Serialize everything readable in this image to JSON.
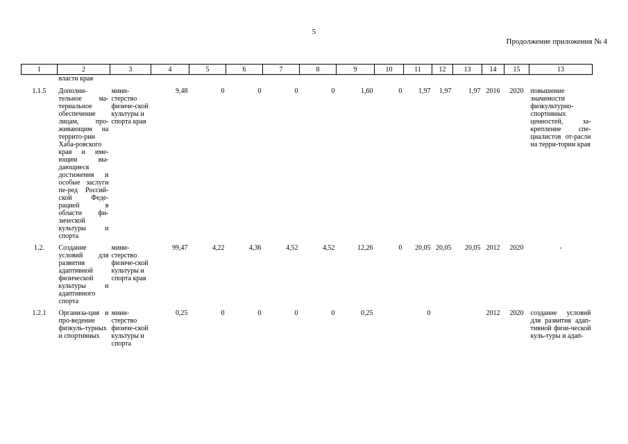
{
  "page_number": "5",
  "continuation": "Продолжение приложения № 4",
  "headers": [
    "1",
    "2",
    "3",
    "4",
    "5",
    "6",
    "7",
    "8",
    "9",
    "10",
    "11",
    "12",
    "13",
    "14",
    "15",
    "13"
  ],
  "continued_text": "власти края",
  "rows": [
    {
      "id": "1.1.5",
      "name": "Дополни-тельное ма-териальное обеспечение лицам, про-живающим на террито-рии Хаба-ровского края и име-ющим вы-дающиеся достижения и особые заслуги пе-ред Россий-ской Феде-рацией в области фи-зической культуры и спорта",
      "executor": "мини-стерство физиче-ской культуры и спорта края",
      "v4": "9,48",
      "v5": "0",
      "v6": "0",
      "v7": "0",
      "v8": "0",
      "v9": "1,60",
      "v10": "0",
      "v11": "1,97",
      "v12": "1,97",
      "v13": "1,97",
      "start": "2016",
      "end": "2020",
      "result": "повышение значимости физкультурно-спортивных ценностей, за-крепление спе-циалистов от-расли на терри-тории края"
    },
    {
      "id": "1.2.",
      "name": "Создание условий для развития адаптивной физической культуры и адаптивного спорта",
      "executor": "мини-стерство физиче-ской культуры и спорта края",
      "v4": "99,47",
      "v5": "4,22",
      "v6": "4,36",
      "v7": "4,52",
      "v8": "4,52",
      "v9": "12,26",
      "v10": "0",
      "v11": "20,05",
      "v12": "20,05",
      "v13": "20,05",
      "start": "2012",
      "end": "2020",
      "result": "-"
    },
    {
      "id": "1.2.1",
      "name": "Организа-ция и про-ведение физкуль-турных и спортивных",
      "executor": "мини-стерство физиче-ской культуры и спорта",
      "v4": "0,25",
      "v5": "0",
      "v6": "0",
      "v7": "0",
      "v8": "0",
      "v9": "0,25",
      "v10": "",
      "v11": "0",
      "v12": "",
      "v13": "",
      "start": "2012",
      "end": "2020",
      "result": "создание условий для развития адап-тивной физи-ческой куль-туры и адап-"
    }
  ]
}
